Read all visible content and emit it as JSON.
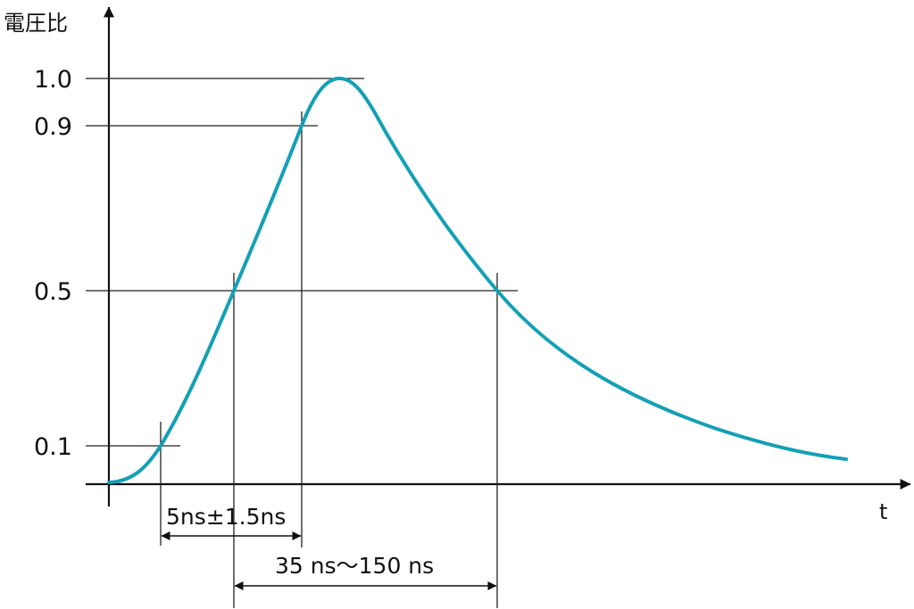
{
  "y_axis": {
    "label": "電圧比"
  },
  "x_axis": {
    "label": "t"
  },
  "levels": [
    {
      "value": 1.0,
      "label": "1.0"
    },
    {
      "value": 0.9,
      "label": "0.9"
    },
    {
      "value": 0.5,
      "label": "0.5"
    },
    {
      "value": 0.1,
      "label": "0.1"
    }
  ],
  "dimensions": {
    "front_time": {
      "label": "5ns±1.5ns",
      "from_level": 0.1,
      "to_level": 0.9
    },
    "tail_time": {
      "label": "35 ns～150 ns",
      "from_level": 0.5,
      "to_level": 0.5
    }
  },
  "colors": {
    "curve": "#14a0b4",
    "lines": "#222222"
  }
}
